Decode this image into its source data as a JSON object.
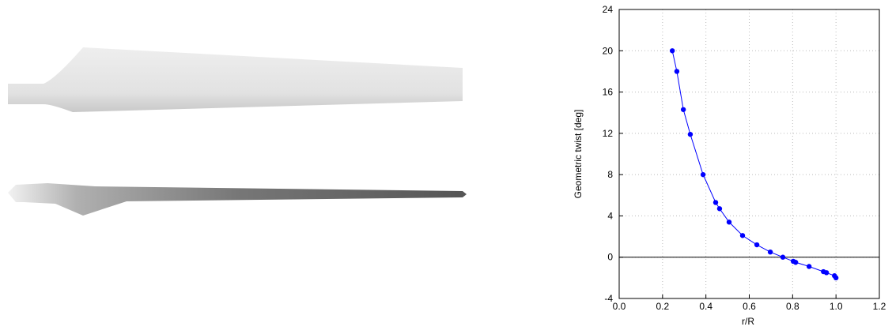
{
  "chart_data": {
    "type": "line",
    "x_label": "r/R",
    "y_label": "Geometric twist [deg]",
    "series": [
      {
        "color": "#0000ff",
        "x": [
          0.245,
          0.266,
          0.296,
          0.328,
          0.387,
          0.445,
          0.463,
          0.507,
          0.569,
          0.635,
          0.697,
          0.755,
          0.803,
          0.814,
          0.876,
          0.942,
          0.956,
          0.993,
          1.0
        ],
        "values": [
          20.0,
          18.0,
          14.3,
          11.9,
          8.0,
          5.3,
          4.7,
          3.4,
          2.1,
          1.2,
          0.5,
          0.0,
          -0.4,
          -0.5,
          -0.9,
          -1.4,
          -1.5,
          -1.8,
          -2.0
        ]
      }
    ],
    "xlim": [
      0,
      1.2
    ],
    "xticks": [
      {
        "value": 0,
        "label": "0.0"
      },
      {
        "value": 0.2,
        "label": "0.2"
      },
      {
        "value": 0.4,
        "label": "0.4"
      },
      {
        "value": 0.6,
        "label": "0.6"
      },
      {
        "value": 0.8,
        "label": "0.8"
      },
      {
        "value": 1.0,
        "label": "1.0"
      },
      {
        "value": 1.2,
        "label": "1.2"
      }
    ],
    "ylim": [
      -4,
      24
    ],
    "yticks": [
      -4,
      0,
      4,
      8,
      12,
      16,
      20,
      24
    ],
    "grid": true
  }
}
